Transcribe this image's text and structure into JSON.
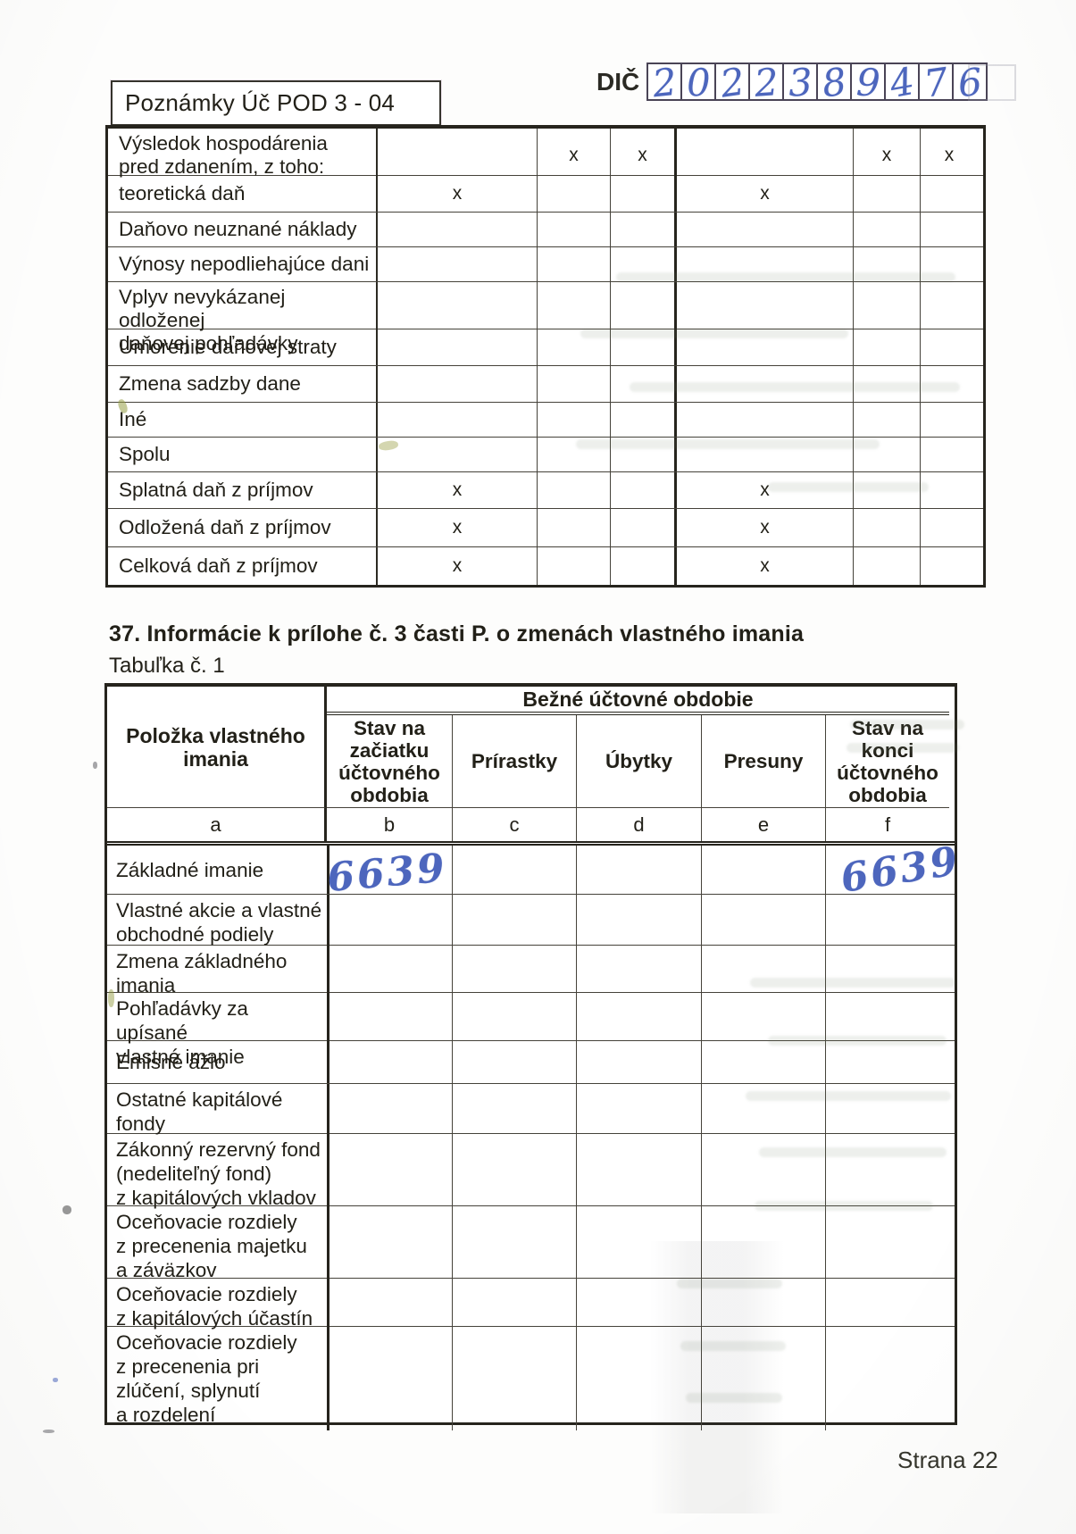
{
  "page": {
    "form_title": "Poznámky Úč POD 3 - 04",
    "page_number": "Strana 22"
  },
  "colors": {
    "ink_blue": "#4d66bd",
    "line_dark": "#26241d",
    "paper": "#fdfdfc"
  },
  "dic": {
    "label": "DIČ",
    "digits": [
      "2",
      "0",
      "2",
      "2",
      "3",
      "8",
      "9",
      "4",
      "7",
      "6"
    ]
  },
  "tax_table": {
    "rows": [
      {
        "label": "Výsledok hospodárenia\npred zdanením, z toho:",
        "cells": [
          "",
          "x",
          "x",
          "",
          "x",
          "x"
        ]
      },
      {
        "label": "teoretická daň",
        "cells": [
          "x",
          "",
          "",
          "x",
          "",
          ""
        ]
      },
      {
        "label": "Daňovo neuznané náklady",
        "cells": [
          "",
          "",
          "",
          "",
          "",
          ""
        ]
      },
      {
        "label": "Výnosy nepodliehajúce dani",
        "cells": [
          "",
          "",
          "",
          "",
          "",
          ""
        ]
      },
      {
        "label": "Vplyv nevykázanej odloženej\ndaňovej pohľadávky",
        "cells": [
          "",
          "",
          "",
          "",
          "",
          ""
        ]
      },
      {
        "label": "Umorenie daňovej straty",
        "cells": [
          "",
          "",
          "",
          "",
          "",
          ""
        ]
      },
      {
        "label": "Zmena sadzby dane",
        "cells": [
          "",
          "",
          "",
          "",
          "",
          ""
        ]
      },
      {
        "label": "Iné",
        "cells": [
          "",
          "",
          "",
          "",
          "",
          ""
        ]
      },
      {
        "label": "Spolu",
        "cells": [
          "",
          "",
          "",
          "",
          "",
          ""
        ]
      },
      {
        "label": "Splatná daň z príjmov",
        "cells": [
          "x",
          "",
          "",
          "x",
          "",
          ""
        ]
      },
      {
        "label": "Odložená daň z príjmov",
        "cells": [
          "x",
          "",
          "",
          "x",
          "",
          ""
        ]
      },
      {
        "label": "Celková daň z príjmov",
        "cells": [
          "x",
          "",
          "",
          "x",
          "",
          ""
        ]
      }
    ]
  },
  "section37": {
    "heading": "37.  Informácie k prílohe č. 3 časti P. o zmenách vlastného imania",
    "subheading": "Tabuľka č. 1"
  },
  "equity_table": {
    "band_header": "Bežné účtovné obdobie",
    "col_a_header": "Položka vlastného imania",
    "col_headers": [
      "Stav na\nzačiatku\núčtovného\nobdobia",
      "Prírastky",
      "Úbytky",
      "Presuny",
      "Stav na konci\núčtovného\nobdobia"
    ],
    "letters": [
      "a",
      "b",
      "c",
      "d",
      "e",
      "f"
    ],
    "rows": [
      {
        "label": "Základné imanie",
        "cells": [
          "6639",
          "",
          "",
          "",
          "6639"
        ],
        "handwritten": true
      },
      {
        "label": "Vlastné akcie a vlastné\nobchodné podiely",
        "cells": [
          "",
          "",
          "",
          "",
          ""
        ]
      },
      {
        "label": "Zmena základného\nimania",
        "cells": [
          "",
          "",
          "",
          "",
          ""
        ]
      },
      {
        "label": "Pohľadávky za upísané\nvlastné imanie",
        "cells": [
          "",
          "",
          "",
          "",
          ""
        ]
      },
      {
        "label": "Emisné ážio",
        "cells": [
          "",
          "",
          "",
          "",
          ""
        ]
      },
      {
        "label": "Ostatné kapitálové\nfondy",
        "cells": [
          "",
          "",
          "",
          "",
          ""
        ]
      },
      {
        "label": "Zákonný rezervný fond\n(nedeliteľný fond)\nz kapitálových vkladov",
        "cells": [
          "",
          "",
          "",
          "",
          ""
        ]
      },
      {
        "label": "Oceňovacie rozdiely\nz precenenia majetku\na záväzkov",
        "cells": [
          "",
          "",
          "",
          "",
          ""
        ]
      },
      {
        "label": "Oceňovacie rozdiely\nz kapitálových účastín",
        "cells": [
          "",
          "",
          "",
          "",
          ""
        ]
      },
      {
        "label": "Oceňovacie rozdiely\nz precenenia pri\nzlúčení, splynutí\na rozdelení",
        "cells": [
          "",
          "",
          "",
          "",
          ""
        ]
      }
    ]
  }
}
